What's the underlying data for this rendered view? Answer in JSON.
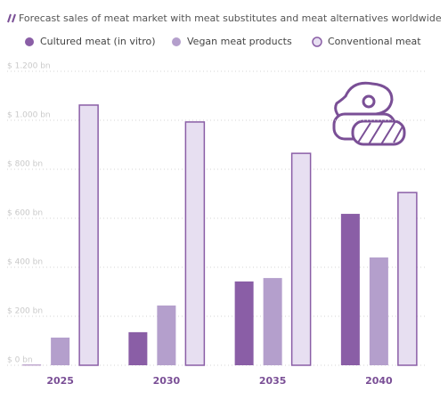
{
  "chart_data": {
    "type": "bar",
    "title": "Forecast sales of meat market with meat substitutes and meat alternatives worldwide",
    "categories": [
      "2025",
      "2030",
      "2035",
      "2040"
    ],
    "series": [
      {
        "name": "Cultured meat (in vitro)",
        "color": "#8a5ea6",
        "values": [
          2,
          135,
          342,
          618
        ]
      },
      {
        "name": "Vegan meat products",
        "color": "#b49fcc",
        "values": [
          113,
          244,
          356,
          440
        ]
      },
      {
        "name": "Conventional meat",
        "color": "#e7dff1",
        "values": [
          1062,
          993,
          865,
          705
        ]
      }
    ],
    "ylim": [
      0,
      1200
    ],
    "yticks": [
      {
        "value": 0,
        "label": "$ 0 bn"
      },
      {
        "value": 200,
        "label": "$ 200 bn"
      },
      {
        "value": 400,
        "label": "$ 400 bn"
      },
      {
        "value": 600,
        "label": "$ 600 bn"
      },
      {
        "value": 800,
        "label": "$ 800 bn"
      },
      {
        "value": 1000,
        "label": "$ 1.000 bn"
      },
      {
        "value": 1200,
        "label": "$ 1.200 bn"
      }
    ],
    "grid": true
  }
}
